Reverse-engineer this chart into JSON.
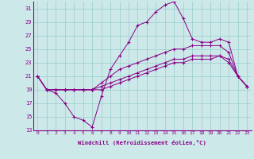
{
  "xlabel": "Windchill (Refroidissement éolien,°C)",
  "bg_color": "#cce8e8",
  "line_color": "#880088",
  "grid_color": "#99cccc",
  "x_min": 0,
  "x_max": 23,
  "y_min": 13,
  "y_max": 32,
  "y_ticks": [
    13,
    15,
    17,
    19,
    21,
    23,
    25,
    27,
    29,
    31
  ],
  "x_ticks": [
    0,
    1,
    2,
    3,
    4,
    5,
    6,
    7,
    8,
    9,
    10,
    11,
    12,
    13,
    14,
    15,
    16,
    17,
    18,
    19,
    20,
    21,
    22,
    23
  ],
  "line1_x": [
    0,
    1,
    2,
    3,
    4,
    5,
    6,
    7,
    8,
    9,
    10,
    11,
    12,
    13,
    14,
    15,
    16,
    17,
    18,
    19,
    20,
    21,
    22,
    23
  ],
  "line1_y": [
    21,
    19,
    18.5,
    17,
    15,
    14.5,
    13.5,
    18,
    22,
    24,
    26,
    28.5,
    29,
    30.5,
    31.5,
    32,
    29.5,
    26.5,
    26,
    26,
    26.5,
    26,
    21,
    19.5
  ],
  "line2_x": [
    0,
    1,
    2,
    3,
    4,
    5,
    6,
    7,
    8,
    9,
    10,
    11,
    12,
    13,
    14,
    15,
    16,
    17,
    18,
    19,
    20,
    21,
    22,
    23
  ],
  "line2_y": [
    21,
    19,
    19,
    19,
    19,
    19,
    19,
    20,
    21,
    22,
    22.5,
    23,
    23.5,
    24,
    24.5,
    25,
    25,
    25.5,
    25.5,
    25.5,
    25.5,
    24.5,
    21,
    19.5
  ],
  "line3_x": [
    0,
    1,
    2,
    3,
    4,
    5,
    6,
    7,
    8,
    9,
    10,
    11,
    12,
    13,
    14,
    15,
    16,
    17,
    18,
    19,
    20,
    21,
    22,
    23
  ],
  "line3_y": [
    21,
    19,
    19,
    19,
    19,
    19,
    19,
    19.5,
    20,
    20.5,
    21,
    21.5,
    22,
    22.5,
    23,
    23.5,
    23.5,
    24,
    24,
    24,
    24,
    23.5,
    21,
    19.5
  ],
  "line4_x": [
    0,
    1,
    2,
    3,
    4,
    5,
    6,
    7,
    8,
    9,
    10,
    11,
    12,
    13,
    14,
    15,
    16,
    17,
    18,
    19,
    20,
    21,
    22,
    23
  ],
  "line4_y": [
    21,
    19,
    19,
    19,
    19,
    19,
    19,
    19,
    19.5,
    20,
    20.5,
    21,
    21.5,
    22,
    22.5,
    23,
    23,
    23.5,
    23.5,
    23.5,
    24,
    23,
    21,
    19.5
  ]
}
